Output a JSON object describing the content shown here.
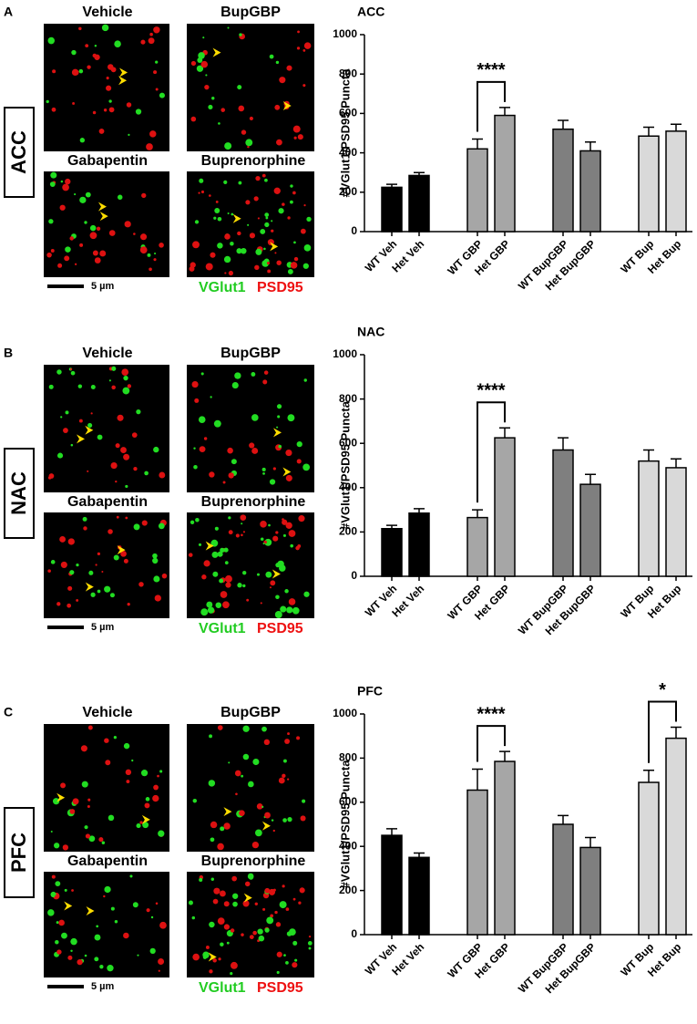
{
  "panels": [
    {
      "letter": "A",
      "region": "ACC",
      "images": [
        "Vehicle",
        "BupGBP",
        "Gabapentin",
        "Buprenorphine"
      ],
      "scale": "5 µm",
      "stains": [
        "VGlut1",
        "PSD95"
      ]
    },
    {
      "letter": "B",
      "region": "NAC",
      "images": [
        "Vehicle",
        "BupGBP",
        "Gabapentin",
        "Buprenorphine"
      ],
      "scale": "5 µm",
      "stains": [
        "VGlut1",
        "PSD95"
      ]
    },
    {
      "letter": "C",
      "region": "PFC",
      "images": [
        "Vehicle",
        "BupGBP",
        "Gabapentin",
        "Buprenorphine"
      ],
      "scale": "5 µm",
      "stains": [
        "VGlut1",
        "PSD95"
      ]
    }
  ],
  "chart_data": [
    {
      "type": "bar",
      "title": "ACC",
      "y_label": "#VGlut1/PSD95 Puncta",
      "categories": [
        "WT Veh",
        "Het Veh",
        "WT GBP",
        "Het GBP",
        "WT BupGBP",
        "Het BupGBP",
        "WT Bup",
        "Het Bup"
      ],
      "values": [
        225,
        285,
        420,
        590,
        520,
        410,
        485,
        510
      ],
      "errors": [
        15,
        15,
        50,
        40,
        45,
        45,
        45,
        35
      ],
      "colors": [
        "#000000",
        "#000000",
        "#a6a6a6",
        "#a6a6a6",
        "#7f7f7f",
        "#7f7f7f",
        "#d9d9d9",
        "#d9d9d9"
      ],
      "ylim": [
        0,
        1000
      ],
      "yticks": [
        0,
        200,
        400,
        600,
        800,
        1000
      ],
      "annotations": [
        {
          "text": "****",
          "between": [
            "WT GBP",
            "Het GBP"
          ]
        }
      ]
    },
    {
      "type": "bar",
      "title": "NAC",
      "y_label": "#VGlut1/PSD95 Puncta",
      "categories": [
        "WT Veh",
        "Het Veh",
        "WT GBP",
        "Het GBP",
        "WT BupGBP",
        "Het BupGBP",
        "WT Bup",
        "Het Bup"
      ],
      "values": [
        215,
        285,
        265,
        625,
        570,
        415,
        520,
        490
      ],
      "errors": [
        15,
        20,
        35,
        45,
        55,
        45,
        50,
        40
      ],
      "colors": [
        "#000000",
        "#000000",
        "#a6a6a6",
        "#a6a6a6",
        "#7f7f7f",
        "#7f7f7f",
        "#d9d9d9",
        "#d9d9d9"
      ],
      "ylim": [
        0,
        1000
      ],
      "yticks": [
        0,
        200,
        400,
        600,
        800,
        1000
      ],
      "annotations": [
        {
          "text": "****",
          "between": [
            "WT GBP",
            "Het GBP"
          ]
        }
      ]
    },
    {
      "type": "bar",
      "title": "PFC",
      "y_label": "#VGlut1/PSD95 Puncta",
      "categories": [
        "WT Veh",
        "Het Veh",
        "WT GBP",
        "Het GBP",
        "WT BupGBP",
        "Het BupGBP",
        "WT Bup",
        "Het Bup"
      ],
      "values": [
        450,
        350,
        655,
        785,
        500,
        395,
        690,
        890
      ],
      "errors": [
        30,
        20,
        95,
        45,
        40,
        45,
        55,
        50
      ],
      "colors": [
        "#000000",
        "#000000",
        "#a6a6a6",
        "#a6a6a6",
        "#7f7f7f",
        "#7f7f7f",
        "#d9d9d9",
        "#d9d9d9"
      ],
      "ylim": [
        0,
        1000
      ],
      "yticks": [
        0,
        200,
        400,
        600,
        800,
        1000
      ],
      "annotations": [
        {
          "text": "****",
          "between": [
            "WT GBP",
            "Het GBP"
          ]
        },
        {
          "text": "*",
          "between": [
            "WT Bup",
            "Het Bup"
          ]
        }
      ]
    }
  ]
}
